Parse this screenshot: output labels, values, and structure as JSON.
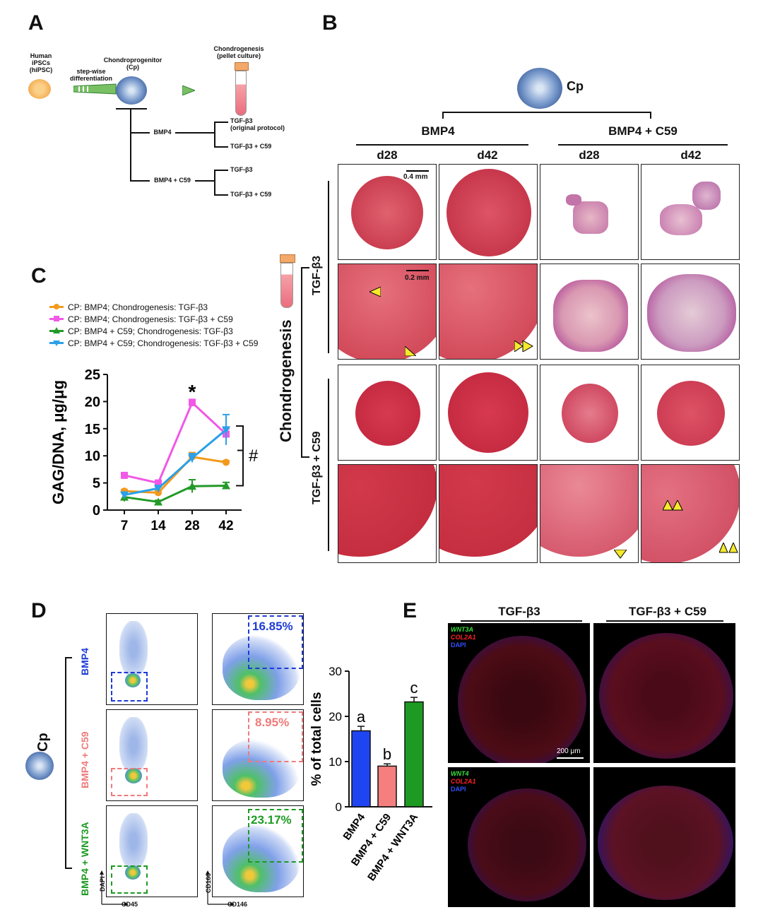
{
  "panels": {
    "a": "A",
    "b": "B",
    "c": "C",
    "d": "D",
    "e": "E"
  },
  "panel_a": {
    "hipsc_label": "Human iPSCs (hiPSC)",
    "stepwise_label": "step-wise differentiation",
    "cp_label": "Chondroprogenitor (Cp)",
    "chondro_label": "Chondrogenesis (pellet culture)",
    "branch1": "BMP4",
    "branch2": "BMP4 + C59",
    "t1": "TGF-β3",
    "t1b": "(original protocol)",
    "t2": "TGF-β3 + C59",
    "t3": "TGF-β3",
    "t4": "TGF-β3 + C59"
  },
  "panel_b": {
    "cp": "Cp",
    "group1": "BMP4",
    "group2": "BMP4 + C59",
    "cols": [
      "d28",
      "d42",
      "d28",
      "d42"
    ],
    "row_group1": "TGF-β3",
    "row_group2": "TGF-β3 + C59",
    "side_label": "Chondrogenesis",
    "scale1": "0.4 mm",
    "scale2": "0.2 mm"
  },
  "chart_data": [
    {
      "type": "line",
      "title": "",
      "xlabel": "",
      "ylabel": "GAG/DNA, μg/μg",
      "x": [
        7,
        14,
        28,
        42
      ],
      "xticks": [
        "7",
        "14",
        "28",
        "42"
      ],
      "yticks": [
        "0",
        "5",
        "10",
        "15",
        "20",
        "25"
      ],
      "ylim": [
        0,
        25
      ],
      "legend": [
        "CP: BMP4; Chondrogenesis: TGF-β3",
        "CP: BMP4; Chondrogenesis: TGF-β3 + C59",
        "CP: BMP4 + C59; Chondrogenesis: TGF-β3",
        "CP: BMP4 + C59; Chondrogenesis: TGF-β3 + C59"
      ],
      "series": [
        {
          "name": "CP: BMP4; Chondrogenesis: TGF-β3",
          "color": "#f39a1c",
          "values": [
            3.5,
            3.2,
            9.8,
            8.8
          ],
          "errors": [
            0.3,
            0.4,
            0.8,
            0.3
          ]
        },
        {
          "name": "CP: BMP4; Chondrogenesis: TGF-β3 + C59",
          "color": "#f158e6",
          "values": [
            6.4,
            5.0,
            19.8,
            14.0
          ],
          "errors": [
            0.4,
            0.3,
            0.6,
            1.0
          ]
        },
        {
          "name": "CP: BMP4 + C59; Chondrogenesis: TGF-β3",
          "color": "#239a28",
          "values": [
            2.4,
            1.5,
            4.4,
            4.5
          ],
          "errors": [
            0.8,
            0.3,
            1.2,
            0.6
          ]
        },
        {
          "name": "CP: BMP4 + C59; Chondrogenesis: TGF-β3 + C59",
          "color": "#2aa0e8",
          "values": [
            2.8,
            4.0,
            9.6,
            14.8
          ],
          "errors": [
            0.5,
            0.3,
            0.8,
            2.8
          ]
        }
      ],
      "annotations": {
        "star": "*",
        "hash": "#"
      }
    },
    {
      "type": "bar",
      "title": "",
      "xlabel": "",
      "ylabel": "% of total cells",
      "categories": [
        "BMP4",
        "BMP4 + C59",
        "BMP4 + WNT3A"
      ],
      "values": [
        16.8,
        9.0,
        23.2
      ],
      "errors": [
        1.0,
        0.5,
        1.0
      ],
      "letters": [
        "a",
        "b",
        "c"
      ],
      "colors": [
        "#1f45f2",
        "#f57f7f",
        "#1d9a22"
      ],
      "yticks": [
        "0",
        "10",
        "20",
        "30"
      ],
      "ylim": [
        0,
        30
      ]
    }
  ],
  "panel_d": {
    "cp": "Cp",
    "rows": [
      {
        "label": "BMP4",
        "color": "#1f3bd6",
        "pct": "16.85%"
      },
      {
        "label": "BMP4 + C59",
        "color": "#f07a7a",
        "pct": "8.95%"
      },
      {
        "label": "BMP4 + WNT3A",
        "color": "#1d9a22",
        "pct": "23.17%"
      }
    ],
    "axes": {
      "dapi": "DAPI",
      "cd45": "CD45",
      "cd166": "CD166",
      "cd146": "CD146"
    }
  },
  "panel_e": {
    "col1": "TGF-β3",
    "col2": "TGF-β3 + C59",
    "top_labels": [
      "WNT3A",
      "COL2A1",
      "DAPI"
    ],
    "bottom_labels": [
      "WNT4",
      "COL2A1",
      "DAPI"
    ],
    "scale": "200 μm"
  }
}
